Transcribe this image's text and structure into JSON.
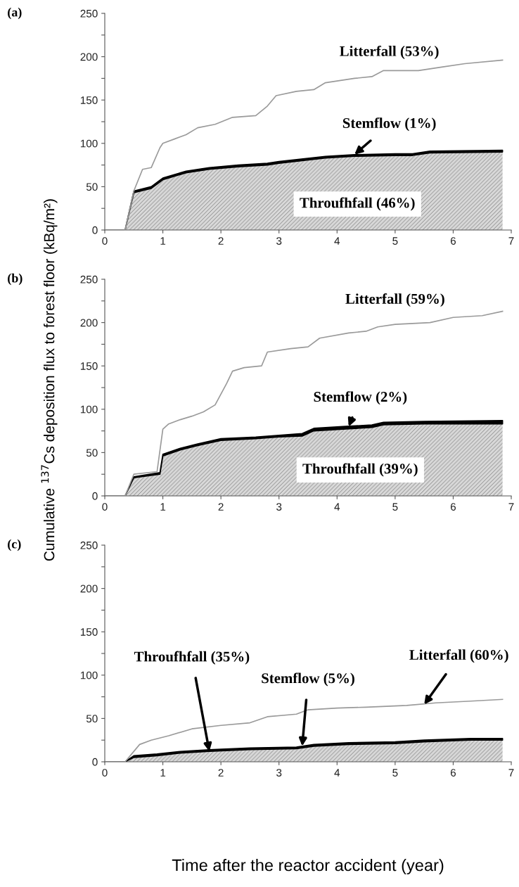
{
  "chart_data": [
    {
      "type": "area",
      "title": "(a)",
      "stacked": true,
      "xlim": [
        0,
        7
      ],
      "ylim": [
        0,
        250
      ],
      "xticks": [
        0,
        1,
        2,
        3,
        4,
        5,
        6,
        7
      ],
      "yticks": [
        0,
        {
          "value": 25,
          "label": null
        },
        50,
        {
          "value": 75,
          "label": null
        },
        100,
        {
          "value": 125,
          "label": null
        },
        150,
        {
          "value": 175,
          "label": null
        },
        200,
        {
          "value": 225,
          "label": null
        },
        250
      ],
      "grid": false,
      "legend": false,
      "series": [
        {
          "color": "#d9d9d9",
          "x": [
            0,
            0.35,
            0.5,
            0.8,
            1.0,
            1.4,
            1.8,
            2.3,
            2.8,
            3.0,
            3.8,
            4.3,
            5.0,
            5.3,
            5.6,
            6.85
          ],
          "values": [
            0,
            0,
            43,
            48,
            58,
            66,
            70,
            73,
            75,
            77,
            83,
            85,
            86,
            86,
            89,
            90
          ]
        },
        {
          "color": "#000000",
          "x": [
            0,
            0.35,
            0.5,
            0.8,
            1.0,
            1.4,
            1.8,
            2.3,
            2.8,
            3.0,
            3.8,
            4.3,
            5.0,
            5.3,
            5.6,
            6.85
          ],
          "values": [
            0,
            0,
            2,
            2,
            2,
            2,
            2,
            2,
            2,
            2,
            2,
            2,
            2,
            2,
            2,
            2
          ]
        },
        {
          "type": "line",
          "color": "#9a9a9a",
          "x": [
            0,
            0.35,
            0.5,
            0.65,
            0.8,
            0.95,
            1.0,
            1.2,
            1.4,
            1.6,
            1.9,
            2.2,
            2.6,
            2.8,
            2.95,
            3.3,
            3.6,
            3.8,
            4.3,
            4.6,
            4.8,
            5.4,
            5.8,
            6.2,
            6.85
          ],
          "values": [
            0,
            0,
            45,
            70,
            72,
            95,
            100,
            105,
            110,
            118,
            122,
            130,
            132,
            143,
            155,
            160,
            162,
            170,
            175,
            177,
            184,
            184,
            188,
            192,
            196
          ]
        }
      ],
      "annotations": [
        {
          "text": "Litterfall (53%)",
          "x": 4.9,
          "y": 184
        },
        {
          "text": "Stemflow (1%)",
          "x": 4.3,
          "y": 87
        },
        "Throufhfall (46%)"
      ]
    },
    {
      "type": "area",
      "title": "(b)",
      "stacked": true,
      "ylabel": "Cumulative $^{137}$Cs deposition flux to forest floor (kBq/m²)",
      "xlim": [
        0,
        7
      ],
      "ylim": [
        0,
        250
      ],
      "xticks": [
        0,
        1,
        2,
        3,
        4,
        5,
        6,
        7
      ],
      "yticks": [
        0,
        {
          "value": 25,
          "label": null
        },
        50,
        {
          "value": 75,
          "label": null
        },
        100,
        {
          "value": 125,
          "label": null
        },
        150,
        {
          "value": 175,
          "label": null
        },
        200,
        {
          "value": 225,
          "label": null
        },
        250
      ],
      "grid": false,
      "legend": false,
      "series": [
        {
          "color": "#d9d9d9",
          "x": [
            0,
            0.35,
            0.5,
            0.95,
            1.0,
            1.3,
            1.6,
            2.0,
            2.6,
            3.0,
            3.4,
            3.6,
            4.1,
            4.6,
            4.8,
            5.5,
            6.85
          ],
          "values": [
            0,
            0,
            21,
            25,
            46,
            53,
            58,
            64,
            66,
            68,
            69,
            75,
            77,
            79,
            82,
            83,
            83
          ]
        },
        {
          "color": "#000000",
          "x": [
            0,
            0.35,
            0.5,
            0.95,
            1.0,
            1.3,
            1.6,
            2.0,
            2.6,
            3.0,
            3.4,
            3.6,
            4.1,
            4.6,
            4.8,
            5.5,
            6.85
          ],
          "values": [
            0,
            0,
            1,
            2,
            2,
            2,
            2,
            2,
            2,
            2,
            3,
            3,
            3,
            3,
            3,
            3,
            4
          ]
        },
        {
          "type": "line",
          "color": "#9a9a9a",
          "x": [
            0,
            0.35,
            0.5,
            0.9,
            1.0,
            1.1,
            1.3,
            1.5,
            1.7,
            1.9,
            2.1,
            2.2,
            2.4,
            2.7,
            2.8,
            3.2,
            3.5,
            3.7,
            4.2,
            4.5,
            4.7,
            5.0,
            5.6,
            6.0,
            6.5,
            6.85
          ],
          "values": [
            0,
            0,
            25,
            28,
            77,
            83,
            88,
            92,
            97,
            105,
            130,
            144,
            148,
            150,
            166,
            170,
            172,
            182,
            188,
            190,
            195,
            198,
            200,
            206,
            208,
            213
          ]
        }
      ],
      "annotations": [
        {
          "text": "Litterfall (59%)",
          "x": 5.0,
          "y": 198
        },
        {
          "text": "Stemflow (2%)",
          "x": 4.2,
          "y": 80
        },
        "Throufhfall (39%)"
      ]
    },
    {
      "type": "area",
      "title": "(c)",
      "stacked": true,
      "xlabel": "Time after the reactor accident (year)",
      "xlim": [
        0,
        7
      ],
      "ylim": [
        0,
        250
      ],
      "xticks": [
        0,
        1,
        2,
        3,
        4,
        5,
        6,
        7
      ],
      "yticks": [
        0,
        {
          "value": 25,
          "label": null
        },
        50,
        {
          "value": 75,
          "label": null
        },
        100,
        {
          "value": 125,
          "label": null
        },
        150,
        {
          "value": 175,
          "label": null
        },
        200,
        {
          "value": 225,
          "label": null
        },
        250
      ],
      "grid": false,
      "legend": false,
      "series": [
        {
          "color": "#d9d9d9",
          "x": [
            0,
            0.35,
            0.5,
            0.9,
            1.3,
            1.8,
            2.5,
            3.3,
            3.6,
            4.2,
            5.0,
            5.5,
            6.3,
            6.85
          ],
          "values": [
            0,
            0,
            5,
            7,
            10,
            12,
            14,
            15,
            18,
            20,
            21,
            23,
            25,
            25
          ]
        },
        {
          "color": "#000000",
          "x": [
            0,
            0.35,
            0.5,
            0.9,
            1.3,
            1.8,
            2.5,
            3.3,
            3.6,
            4.2,
            5.0,
            5.5,
            6.3,
            6.85
          ],
          "values": [
            0,
            0,
            2,
            2,
            2,
            2,
            2,
            2,
            2,
            2,
            2,
            2,
            2,
            2
          ]
        },
        {
          "type": "line",
          "color": "#9a9a9a",
          "x": [
            0,
            0.35,
            0.6,
            0.8,
            1.1,
            1.5,
            2.0,
            2.5,
            2.8,
            3.3,
            3.5,
            4.0,
            4.5,
            5.2,
            5.7,
            6.3,
            6.85
          ],
          "values": [
            0,
            0,
            20,
            25,
            30,
            38,
            42,
            45,
            52,
            55,
            60,
            62,
            63,
            65,
            68,
            70,
            72
          ]
        }
      ],
      "annotations": [
        {
          "text": "Throufhfall (35%)",
          "x": 1.8,
          "y": 12
        },
        {
          "text": "Stemflow (5%)",
          "x": 3.4,
          "y": 18
        },
        {
          "text": "Litterfall (60%)",
          "x": 5.5,
          "y": 66
        }
      ]
    }
  ]
}
